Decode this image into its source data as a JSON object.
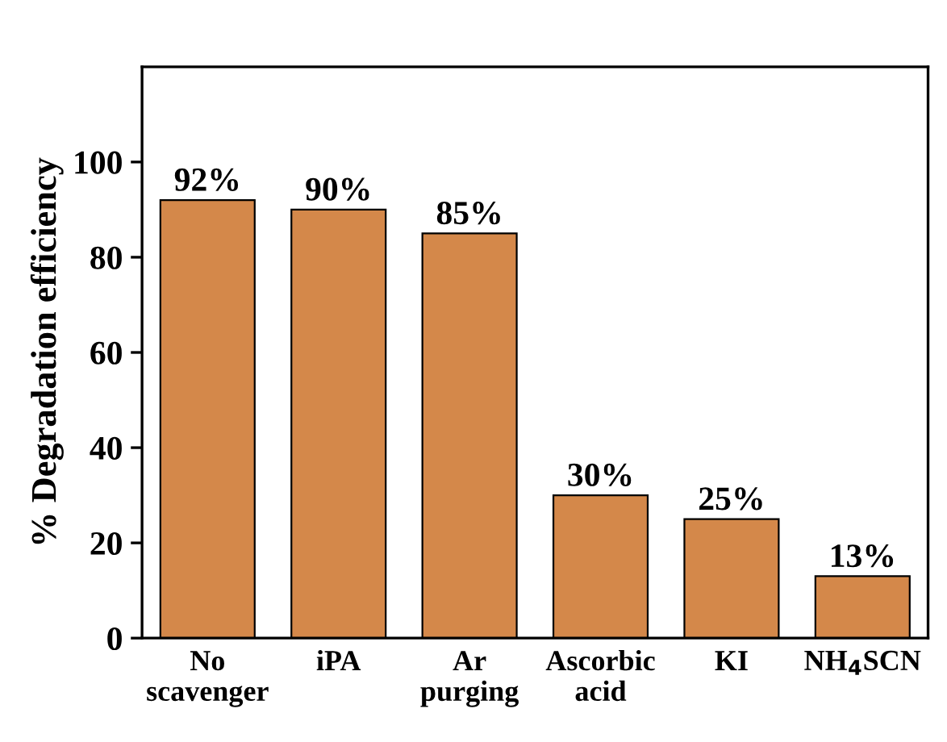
{
  "chart_data": {
    "type": "bar",
    "ylabel": "% Degradation efficiency",
    "categories": [
      "No\nscavenger",
      "iPA",
      "Ar\npurging",
      "Ascorbic\nacid",
      "KI",
      "NH$_{4}$SCN"
    ],
    "values": [
      92,
      90,
      85,
      30,
      25,
      13
    ],
    "value_labels": [
      "92%",
      "90%",
      "85%",
      "30%",
      "25%",
      "13%"
    ],
    "color": "#d4884a",
    "ylim": [
      0,
      120
    ],
    "yticks": [
      0,
      20,
      40,
      60,
      80,
      100
    ],
    "grid": false,
    "legend": false
  }
}
